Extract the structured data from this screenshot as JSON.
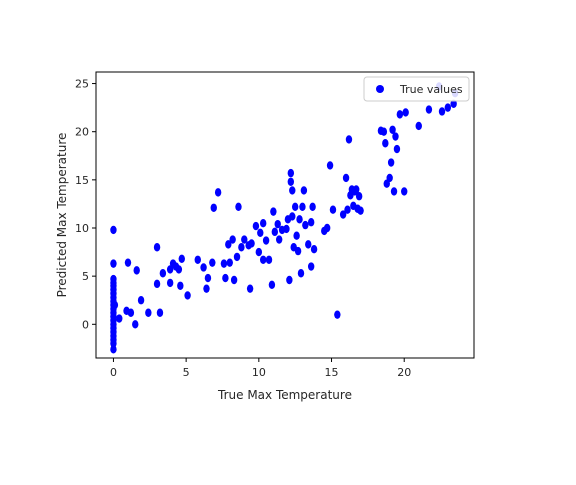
{
  "chart_data": {
    "type": "scatter",
    "title": "",
    "xlabel": "True Max Temperature",
    "ylabel": "Predicted Max Temperature",
    "xlim": [
      -1.2,
      24.8
    ],
    "ylim": [
      -3.5,
      26.2
    ],
    "xticks": [
      0,
      5,
      10,
      15,
      20
    ],
    "yticks": [
      0,
      5,
      10,
      15,
      20,
      25
    ],
    "grid": false,
    "legend_position": "top-right",
    "series": [
      {
        "name": "True values",
        "color": "#0000ff",
        "marker": "circle",
        "points": [
          [
            0,
            9.8
          ],
          [
            0,
            6.3
          ],
          [
            0,
            4.7
          ],
          [
            0,
            4.3
          ],
          [
            0,
            4.0
          ],
          [
            0,
            3.6
          ],
          [
            0,
            3.2
          ],
          [
            0,
            2.8
          ],
          [
            0,
            2.4
          ],
          [
            0,
            2.0
          ],
          [
            0,
            1.6
          ],
          [
            0,
            1.2
          ],
          [
            0,
            0.8
          ],
          [
            0,
            0.4
          ],
          [
            0,
            0.0
          ],
          [
            0,
            -0.4
          ],
          [
            0,
            -0.8
          ],
          [
            0,
            -1.2
          ],
          [
            0,
            -1.6
          ],
          [
            0,
            -2.0
          ],
          [
            0,
            -2.6
          ],
          [
            0.1,
            2.0
          ],
          [
            0.4,
            0.6
          ],
          [
            0.9,
            1.4
          ],
          [
            1.0,
            6.4
          ],
          [
            1.2,
            1.2
          ],
          [
            1.5,
            0.0
          ],
          [
            1.6,
            5.6
          ],
          [
            1.9,
            2.5
          ],
          [
            2.4,
            1.2
          ],
          [
            3.0,
            8.0
          ],
          [
            3.0,
            4.2
          ],
          [
            3.2,
            1.2
          ],
          [
            3.4,
            5.3
          ],
          [
            3.9,
            4.3
          ],
          [
            3.9,
            5.7
          ],
          [
            4.1,
            6.3
          ],
          [
            4.3,
            6.0
          ],
          [
            4.5,
            5.7
          ],
          [
            4.6,
            4.0
          ],
          [
            4.7,
            6.8
          ],
          [
            5.1,
            3.0
          ],
          [
            5.8,
            6.7
          ],
          [
            6.2,
            5.9
          ],
          [
            6.4,
            3.7
          ],
          [
            6.5,
            4.8
          ],
          [
            6.8,
            6.4
          ],
          [
            6.9,
            12.1
          ],
          [
            7.2,
            13.7
          ],
          [
            7.6,
            6.3
          ],
          [
            7.7,
            4.8
          ],
          [
            7.9,
            8.3
          ],
          [
            8.0,
            6.4
          ],
          [
            8.2,
            8.8
          ],
          [
            8.3,
            4.6
          ],
          [
            8.5,
            7.0
          ],
          [
            8.6,
            12.2
          ],
          [
            8.8,
            8.0
          ],
          [
            9.0,
            8.8
          ],
          [
            9.3,
            8.2
          ],
          [
            9.4,
            3.7
          ],
          [
            9.5,
            8.4
          ],
          [
            9.8,
            10.2
          ],
          [
            10.0,
            7.5
          ],
          [
            10.1,
            9.5
          ],
          [
            10.3,
            10.5
          ],
          [
            10.3,
            6.7
          ],
          [
            10.5,
            8.7
          ],
          [
            10.7,
            6.7
          ],
          [
            10.9,
            4.1
          ],
          [
            11.0,
            11.7
          ],
          [
            11.1,
            9.6
          ],
          [
            11.3,
            10.4
          ],
          [
            11.4,
            8.8
          ],
          [
            11.6,
            9.8
          ],
          [
            11.9,
            9.9
          ],
          [
            12.0,
            10.9
          ],
          [
            12.1,
            4.6
          ],
          [
            12.2,
            15.7
          ],
          [
            12.2,
            14.8
          ],
          [
            12.3,
            13.9
          ],
          [
            12.3,
            11.2
          ],
          [
            12.4,
            8.0
          ],
          [
            12.5,
            12.2
          ],
          [
            12.6,
            9.2
          ],
          [
            12.7,
            7.6
          ],
          [
            12.8,
            10.9
          ],
          [
            12.9,
            5.3
          ],
          [
            13.0,
            12.2
          ],
          [
            13.1,
            13.9
          ],
          [
            13.2,
            10.3
          ],
          [
            13.4,
            8.3
          ],
          [
            13.6,
            10.6
          ],
          [
            13.6,
            6.0
          ],
          [
            13.7,
            12.2
          ],
          [
            13.8,
            7.8
          ],
          [
            14.5,
            9.7
          ],
          [
            14.7,
            10.0
          ],
          [
            14.9,
            16.5
          ],
          [
            15.1,
            11.9
          ],
          [
            15.4,
            1.0
          ],
          [
            15.8,
            11.4
          ],
          [
            16.0,
            15.2
          ],
          [
            16.1,
            11.9
          ],
          [
            16.2,
            19.2
          ],
          [
            16.3,
            13.4
          ],
          [
            16.4,
            14.0
          ],
          [
            16.5,
            12.3
          ],
          [
            16.6,
            13.8
          ],
          [
            16.7,
            14.0
          ],
          [
            16.8,
            12.0
          ],
          [
            16.9,
            13.3
          ],
          [
            17.0,
            11.8
          ],
          [
            18.4,
            20.1
          ],
          [
            18.6,
            20.0
          ],
          [
            18.7,
            18.8
          ],
          [
            18.8,
            14.6
          ],
          [
            19.0,
            15.2
          ],
          [
            19.1,
            16.8
          ],
          [
            19.2,
            20.2
          ],
          [
            19.3,
            13.8
          ],
          [
            19.4,
            19.5
          ],
          [
            19.5,
            18.2
          ],
          [
            19.7,
            21.8
          ],
          [
            20.0,
            13.8
          ],
          [
            20.1,
            22.0
          ],
          [
            21.0,
            20.6
          ],
          [
            21.7,
            22.3
          ],
          [
            22.4,
            24.7
          ],
          [
            22.6,
            22.1
          ],
          [
            23.0,
            22.5
          ],
          [
            23.4,
            22.9
          ],
          [
            23.5,
            24.0
          ]
        ]
      }
    ]
  }
}
